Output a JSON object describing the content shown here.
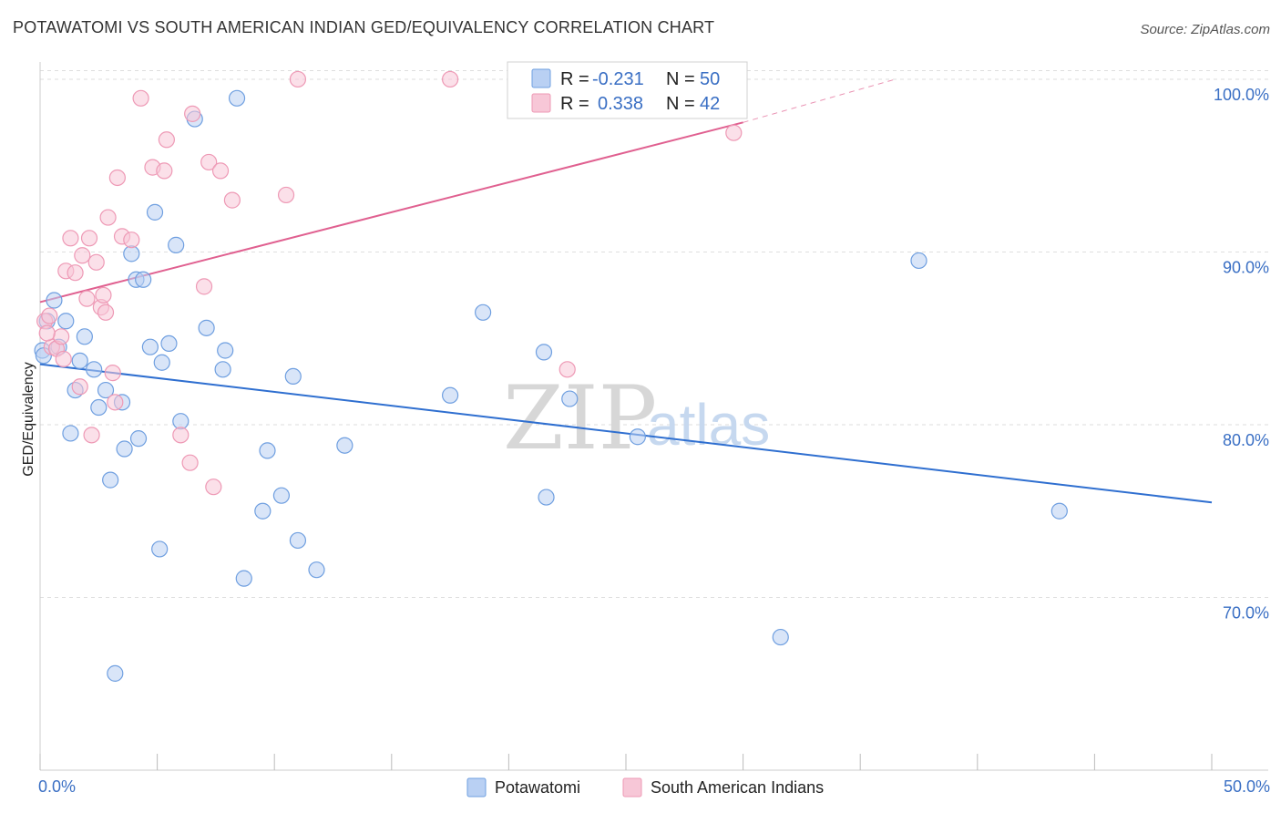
{
  "title": "POTAWATOMI VS SOUTH AMERICAN INDIAN GED/EQUIVALENCY CORRELATION CHART",
  "source": "Source: ZipAtlas.com",
  "chart_data": {
    "type": "scatter",
    "ylabel": "GED/Equivalency",
    "xlim": [
      0,
      50
    ],
    "ylim": [
      60,
      101
    ],
    "x_tick_labels": [
      {
        "value": 0,
        "label": "0.0%"
      },
      {
        "value": 50,
        "label": "50.0%"
      }
    ],
    "x_minor_ticks": [
      0,
      5,
      10,
      15,
      20,
      25,
      30,
      35,
      40,
      45,
      50
    ],
    "y_ticks": [
      {
        "value": 70,
        "label": "70.0%"
      },
      {
        "value": 80,
        "label": "80.0%"
      },
      {
        "value": 90,
        "label": "90.0%"
      },
      {
        "value": 100,
        "label": "100.0%"
      }
    ],
    "watermark": {
      "zip": "ZIP",
      "atlas": "atlas"
    },
    "legend": [
      {
        "r_label": "R =",
        "r_value": "-0.231",
        "n_label": "N =",
        "n_value": "50"
      },
      {
        "r_label": "R =",
        "r_value": "0.338",
        "n_label": "N =",
        "n_value": "42"
      }
    ],
    "series": [
      {
        "name": "Potawatomi",
        "color": "#6f9fe0",
        "fill": "#b9d0f3",
        "line_color": "#2f6fd0",
        "trend": {
          "x0": 0,
          "y0": 83.5,
          "x1": 50,
          "y1": 75.5
        },
        "points": [
          [
            0.1,
            84.3
          ],
          [
            0.3,
            86.0
          ],
          [
            0.6,
            87.2
          ],
          [
            0.8,
            84.5
          ],
          [
            1.1,
            86.0
          ],
          [
            1.3,
            79.5
          ],
          [
            1.5,
            82.0
          ],
          [
            1.7,
            83.7
          ],
          [
            1.9,
            85.1
          ],
          [
            2.3,
            83.2
          ],
          [
            2.5,
            81.0
          ],
          [
            2.8,
            82.0
          ],
          [
            3.0,
            76.8
          ],
          [
            3.2,
            65.6
          ],
          [
            3.5,
            81.3
          ],
          [
            3.6,
            78.6
          ],
          [
            3.9,
            89.9
          ],
          [
            4.1,
            88.4
          ],
          [
            4.2,
            79.2
          ],
          [
            4.4,
            88.4
          ],
          [
            4.7,
            84.5
          ],
          [
            4.9,
            92.3
          ],
          [
            5.1,
            72.8
          ],
          [
            5.2,
            83.6
          ],
          [
            5.5,
            84.7
          ],
          [
            5.8,
            90.4
          ],
          [
            6.0,
            80.2
          ],
          [
            6.6,
            97.7
          ],
          [
            7.1,
            85.6
          ],
          [
            7.8,
            83.2
          ],
          [
            7.9,
            84.3
          ],
          [
            8.4,
            98.9
          ],
          [
            8.7,
            71.1
          ],
          [
            9.5,
            75.0
          ],
          [
            9.7,
            78.5
          ],
          [
            10.3,
            75.9
          ],
          [
            10.8,
            82.8
          ],
          [
            11.0,
            73.3
          ],
          [
            11.8,
            71.6
          ],
          [
            13.0,
            78.8
          ],
          [
            17.5,
            81.7
          ],
          [
            18.9,
            86.5
          ],
          [
            21.5,
            84.2
          ],
          [
            21.6,
            75.8
          ],
          [
            22.6,
            81.5
          ],
          [
            25.5,
            79.3
          ],
          [
            31.6,
            67.7
          ],
          [
            37.5,
            89.5
          ],
          [
            43.5,
            75.0
          ],
          [
            0.15,
            84.0
          ]
        ]
      },
      {
        "name": "South American Indians",
        "color": "#ee99b5",
        "fill": "#f7c7d7",
        "line_color": "#e06090",
        "trend": {
          "x0": 0,
          "y0": 87.1,
          "x1": 30,
          "y1": 97.5
        },
        "trend_dashed": {
          "x0": 30,
          "y0": 97.5,
          "x1": 36.5,
          "y1": 100.0
        },
        "points": [
          [
            0.2,
            86.0
          ],
          [
            0.4,
            86.3
          ],
          [
            0.5,
            84.5
          ],
          [
            0.7,
            84.4
          ],
          [
            0.9,
            85.1
          ],
          [
            1.0,
            83.8
          ],
          [
            1.1,
            88.9
          ],
          [
            1.3,
            90.8
          ],
          [
            1.5,
            88.8
          ],
          [
            1.7,
            82.2
          ],
          [
            1.8,
            89.8
          ],
          [
            2.0,
            87.3
          ],
          [
            2.1,
            90.8
          ],
          [
            2.2,
            79.4
          ],
          [
            2.4,
            89.4
          ],
          [
            2.6,
            86.8
          ],
          [
            2.7,
            87.5
          ],
          [
            2.8,
            86.5
          ],
          [
            2.9,
            92.0
          ],
          [
            3.1,
            83.0
          ],
          [
            3.2,
            81.3
          ],
          [
            3.3,
            94.3
          ],
          [
            3.5,
            90.9
          ],
          [
            3.9,
            90.7
          ],
          [
            4.3,
            98.9
          ],
          [
            4.8,
            94.9
          ],
          [
            5.3,
            94.7
          ],
          [
            5.4,
            96.5
          ],
          [
            6.0,
            79.4
          ],
          [
            6.4,
            77.8
          ],
          [
            6.5,
            98.0
          ],
          [
            7.0,
            88.0
          ],
          [
            7.2,
            95.2
          ],
          [
            7.4,
            76.4
          ],
          [
            7.7,
            94.7
          ],
          [
            8.2,
            93.0
          ],
          [
            10.5,
            93.3
          ],
          [
            11.0,
            100.0
          ],
          [
            17.5,
            100.0
          ],
          [
            22.5,
            83.2
          ],
          [
            29.6,
            96.9
          ],
          [
            0.3,
            85.3
          ]
        ]
      }
    ]
  }
}
